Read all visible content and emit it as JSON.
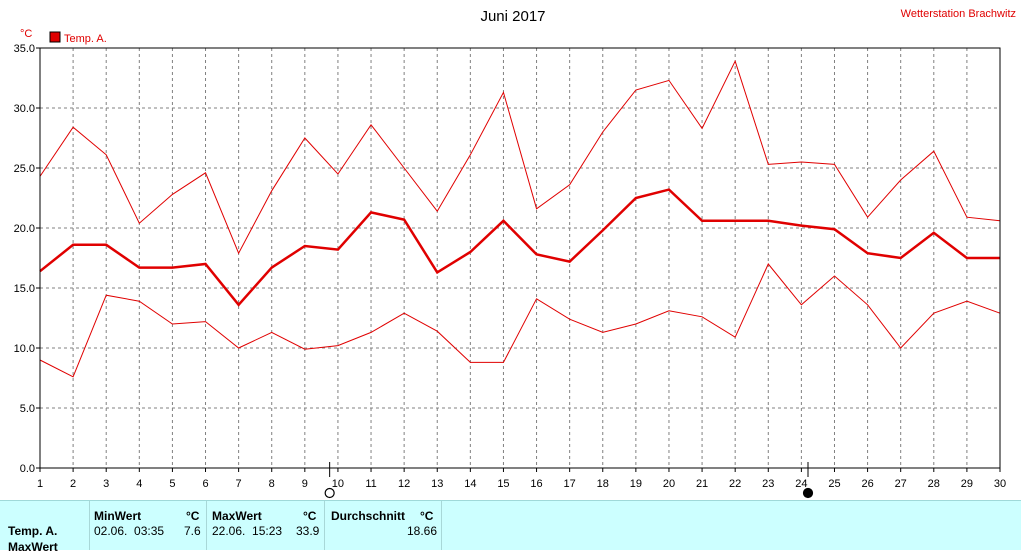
{
  "chart_data": {
    "type": "line",
    "title": "Juni 2017",
    "station": "Wetterstation Brachwitz",
    "yunit": "°C",
    "legend": "Temp. A.",
    "x": [
      1,
      2,
      3,
      4,
      5,
      6,
      7,
      8,
      9,
      10,
      11,
      12,
      13,
      14,
      15,
      16,
      17,
      18,
      19,
      20,
      21,
      22,
      23,
      24,
      25,
      26,
      27,
      28,
      29,
      30
    ],
    "xlim": [
      1,
      30
    ],
    "ylim": [
      0,
      35
    ],
    "yticks": [
      "0.0",
      "5.0",
      "10.0",
      "15.0",
      "20.0",
      "25.0",
      "30.0",
      "35.0"
    ],
    "grid": true,
    "series": [
      {
        "role": "max",
        "color": "#e00000",
        "values": [
          24.3,
          28.4,
          26.1,
          20.4,
          22.8,
          24.6,
          17.9,
          23.1,
          27.5,
          24.5,
          28.6,
          25.0,
          21.4,
          26.1,
          31.3,
          21.6,
          23.6,
          28.0,
          31.5,
          32.3,
          28.3,
          33.9,
          25.3,
          25.5,
          25.3,
          20.9,
          24.0,
          26.4,
          20.9,
          20.6
        ]
      },
      {
        "role": "avg",
        "color": "#e00000",
        "values": [
          16.4,
          18.6,
          18.6,
          16.7,
          16.7,
          17.0,
          13.6,
          16.7,
          18.5,
          18.2,
          21.3,
          20.7,
          16.3,
          18.0,
          20.6,
          17.8,
          17.2,
          19.8,
          22.5,
          23.2,
          20.6,
          20.6,
          20.6,
          20.2,
          19.9,
          17.9,
          17.5,
          19.6,
          17.5,
          17.5
        ]
      },
      {
        "role": "min",
        "color": "#e00000",
        "values": [
          9.0,
          7.6,
          14.4,
          13.9,
          12.0,
          12.2,
          10.0,
          11.3,
          9.9,
          10.2,
          11.3,
          12.9,
          11.4,
          8.8,
          8.8,
          14.1,
          12.4,
          11.3,
          12.0,
          13.1,
          12.6,
          10.9,
          17.0,
          13.6,
          16.0,
          13.6,
          10.0,
          12.9,
          13.9,
          12.9
        ]
      }
    ],
    "moon_phases": [
      {
        "day": 9.75,
        "phase": "full"
      },
      {
        "day": 24.2,
        "phase": "new"
      }
    ]
  },
  "summary": {
    "row_label": "Temp. A.",
    "row_label_2": "MaxWert",
    "min_header": "MinWert",
    "max_header": "MaxWert",
    "avg_header": "Durchschnitt",
    "unit": "°C",
    "min_time": "02.06.  03:35",
    "min_value": "7.6",
    "max_time": "22.06.  15:23",
    "max_value": "33.9",
    "avg_value": "18.66"
  }
}
